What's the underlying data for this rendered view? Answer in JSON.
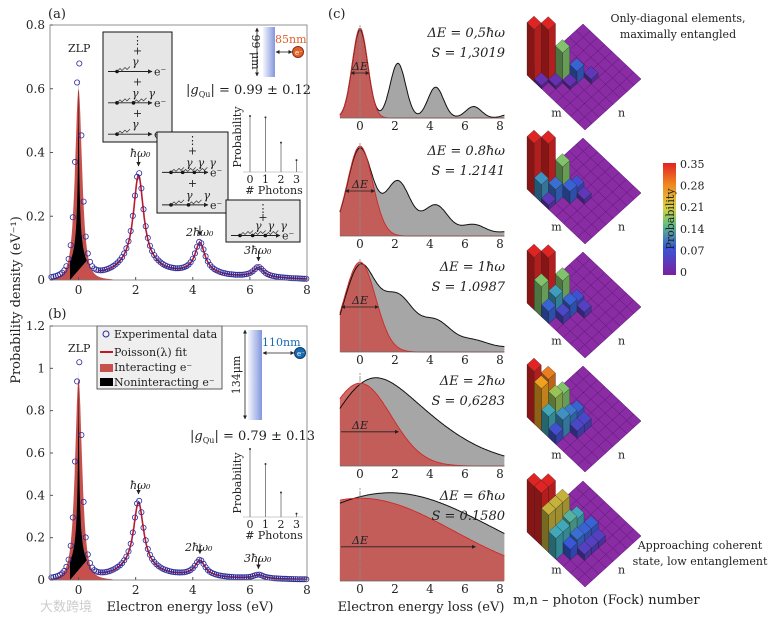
{
  "panel_a": {
    "label": "(a)",
    "zlp": "ZLP",
    "peak_labels": [
      "ħω₀",
      "2ħω₀",
      "3ħω₀"
    ],
    "g_symbol": "g",
    "g_sub": "Qu",
    "g_value": "= 0.99 ± 0.12",
    "distance": "85nm",
    "length": "99 μm",
    "electron": "e⁻",
    "inset": {
      "ylabel": "Probability",
      "xlabel": "# Photons",
      "ticks": [
        "0",
        "1",
        "2",
        "3"
      ],
      "values": [
        0.8,
        0.78,
        0.42,
        0.17
      ]
    },
    "diagram_symbols": {
      "photon": "γ",
      "electron": "e⁻",
      "plus": "+",
      "dots": "⋮"
    }
  },
  "panel_b": {
    "label": "(b)",
    "zlp": "ZLP",
    "peak_labels": [
      "ħω₀",
      "2ħω₀",
      "3ħω₀"
    ],
    "g_symbol": "g",
    "g_sub": "Qu",
    "g_value": "= 0.79 ± 0.13",
    "distance": "110nm",
    "length": "134μm",
    "electron": "e⁻",
    "legend": [
      "Experimental data",
      "Poisson(λ) fit",
      "Interacting e⁻",
      "Noninteracting e⁻"
    ],
    "inset": {
      "ylabel": "Probability",
      "xlabel": "# Photons",
      "ticks": [
        "0",
        "1",
        "2",
        "3"
      ],
      "values": [
        1.0,
        0.78,
        0.36,
        0.05
      ]
    },
    "xlabel": "Electron energy loss (eV)"
  },
  "y_axis_label": "Probability density (eV⁻¹)",
  "panel_c": {
    "label": "(c)",
    "xlabel": "Electron energy loss (eV)",
    "matrix_axis_label": "m,n – photon (Fock) number",
    "m_label": "m",
    "n_label": "n",
    "note_top": [
      "Only-diagonal elements,",
      "maximally entangled"
    ],
    "note_bottom": [
      "Approaching coherent",
      "state, low entanglement"
    ],
    "delta_label": "ΔE",
    "colorbar": {
      "label": "Probability",
      "ticks": [
        "0.35",
        "0.28",
        "0.21",
        "0.14",
        "0.07",
        "0"
      ],
      "colors": [
        "#e02424",
        "#f08a20",
        "#8cc860",
        "#40a8b8",
        "#3858d8",
        "#7a20a0"
      ]
    }
  },
  "watermark": "大数跨境",
  "colors": {
    "experimental": "#2a2a9a",
    "fit": "#c0182a",
    "interacting": "#c8504c",
    "noninteracting": "#000000",
    "gray_fill": "#a6a6a6",
    "matrix_base": "#8a2ca4",
    "orange": "#e0602a",
    "blue": "#1a6ab0"
  },
  "chart_data": [
    {
      "id": "a",
      "type": "scatter+line",
      "xlabel": "Electron energy loss (eV)",
      "ylabel": "Probability density (eV⁻¹)",
      "xlim": [
        -1,
        8
      ],
      "ylim": [
        0,
        0.8
      ],
      "xticks": [
        "0",
        "2",
        "4",
        "6",
        "8"
      ],
      "xtick_values": [
        0,
        2,
        4,
        6,
        8
      ],
      "yticks": [
        "0",
        "0.2",
        "0.4",
        "0.6",
        "0.8"
      ],
      "ytick_values": [
        0,
        0.2,
        0.4,
        0.6,
        0.8
      ],
      "peaks": [
        {
          "energy": 0,
          "height": 0.69
        },
        {
          "energy": 2.1,
          "height": 0.335
        },
        {
          "energy": 4.25,
          "height": 0.11
        },
        {
          "energy": 6.3,
          "height": 0.035
        }
      ],
      "interacting_zlp_height": 0.6,
      "noninteracting_zlp_height": 0.65
    },
    {
      "id": "b",
      "type": "scatter+line",
      "xlabel": "Electron energy loss (eV)",
      "ylabel": "Probability density (eV⁻¹)",
      "xlim": [
        -1,
        8
      ],
      "ylim": [
        0,
        1.2
      ],
      "xticks": [
        "0",
        "2",
        "4",
        "6",
        "8"
      ],
      "xtick_values": [
        0,
        2,
        4,
        6,
        8
      ],
      "yticks": [
        "0",
        "0.2",
        "0.4",
        "0.6",
        "0.8",
        "1",
        "1.2"
      ],
      "ytick_values": [
        0,
        0.2,
        0.4,
        0.6,
        0.8,
        1.0,
        1.2
      ],
      "peaks": [
        {
          "energy": 0,
          "height": 1.05
        },
        {
          "energy": 2.1,
          "height": 0.375
        },
        {
          "energy": 4.25,
          "height": 0.085
        },
        {
          "energy": 6.3,
          "height": 0.02
        }
      ],
      "interacting_zlp_height": 0.95,
      "noninteracting_zlp_height": 1.0
    },
    {
      "id": "c",
      "type": "area",
      "xlim": [
        -1.1,
        8.2
      ],
      "xticks": [
        "0",
        "2",
        "4",
        "6",
        "8"
      ],
      "xtick_values": [
        0,
        2,
        4,
        6,
        8
      ],
      "photon_energy_eV": 2.1,
      "photon_weights": [
        1,
        0.62,
        0.35,
        0.13,
        0.05
      ],
      "rows": [
        {
          "deltaE": "ΔE = 0,5ħω",
          "entropy": "S = 1,3019",
          "deltaE_factor": 0.5,
          "matrix": [
            [
              0,
              0,
              0.35
            ],
            [
              1,
              1,
              0.35
            ],
            [
              2,
              2,
              0.2
            ],
            [
              3,
              3,
              0.08
            ],
            [
              4,
              4,
              0.03
            ],
            [
              1,
              0,
              0.02
            ],
            [
              2,
              1,
              0.02
            ],
            [
              3,
              2,
              0.02
            ]
          ]
        },
        {
          "deltaE": "ΔE = 0.8ħω",
          "entropy": "S = 1.2141",
          "deltaE_factor": 0.8,
          "matrix": [
            [
              0,
              0,
              0.35
            ],
            [
              1,
              1,
              0.35
            ],
            [
              2,
              2,
              0.2
            ],
            [
              1,
              0,
              0.12
            ],
            [
              2,
              1,
              0.09
            ],
            [
              3,
              2,
              0.08
            ],
            [
              3,
              3,
              0.06
            ],
            [
              4,
              3,
              0.03
            ],
            [
              2,
              0,
              0.03
            ]
          ]
        },
        {
          "deltaE": "ΔE = 1ħω",
          "entropy": "S = 1.0987",
          "deltaE_factor": 1,
          "matrix": [
            [
              0,
              0,
              0.35
            ],
            [
              1,
              1,
              0.35
            ],
            [
              2,
              2,
              0.2
            ],
            [
              1,
              0,
              0.2
            ],
            [
              2,
              1,
              0.13
            ],
            [
              3,
              2,
              0.08
            ],
            [
              3,
              3,
              0.06
            ],
            [
              2,
              0,
              0.08
            ],
            [
              4,
              3,
              0.04
            ],
            [
              3,
              1,
              0.05
            ]
          ]
        },
        {
          "deltaE": "ΔE = 2ħω",
          "entropy": "S = 0,6283",
          "deltaE_factor": 2,
          "matrix": [
            [
              0,
              0,
              0.35
            ],
            [
              1,
              1,
              0.3
            ],
            [
              1,
              0,
              0.28
            ],
            [
              2,
              2,
              0.2
            ],
            [
              2,
              1,
              0.22
            ],
            [
              2,
              0,
              0.14
            ],
            [
              3,
              2,
              0.1
            ],
            [
              3,
              1,
              0.12
            ],
            [
              3,
              0,
              0.06
            ],
            [
              3,
              3,
              0.08
            ],
            [
              4,
              2,
              0.05
            ],
            [
              4,
              3,
              0.05
            ]
          ]
        },
        {
          "deltaE": "ΔE = 6ħω",
          "entropy": "S = 0.1580",
          "deltaE_factor": 6,
          "matrix": [
            [
              0,
              0,
              0.35
            ],
            [
              1,
              1,
              0.35
            ],
            [
              1,
              0,
              0.35
            ],
            [
              2,
              2,
              0.25
            ],
            [
              2,
              1,
              0.25
            ],
            [
              2,
              0,
              0.25
            ],
            [
              3,
              3,
              0.14
            ],
            [
              3,
              2,
              0.16
            ],
            [
              3,
              1,
              0.14
            ],
            [
              3,
              0,
              0.14
            ],
            [
              4,
              4,
              0.08
            ],
            [
              4,
              3,
              0.08
            ],
            [
              4,
              2,
              0.09
            ],
            [
              4,
              1,
              0.07
            ],
            [
              5,
              3,
              0.04
            ],
            [
              5,
              4,
              0.04
            ],
            [
              5,
              2,
              0.04
            ]
          ]
        }
      ],
      "colorbar_range": [
        0,
        0.35
      ]
    }
  ]
}
